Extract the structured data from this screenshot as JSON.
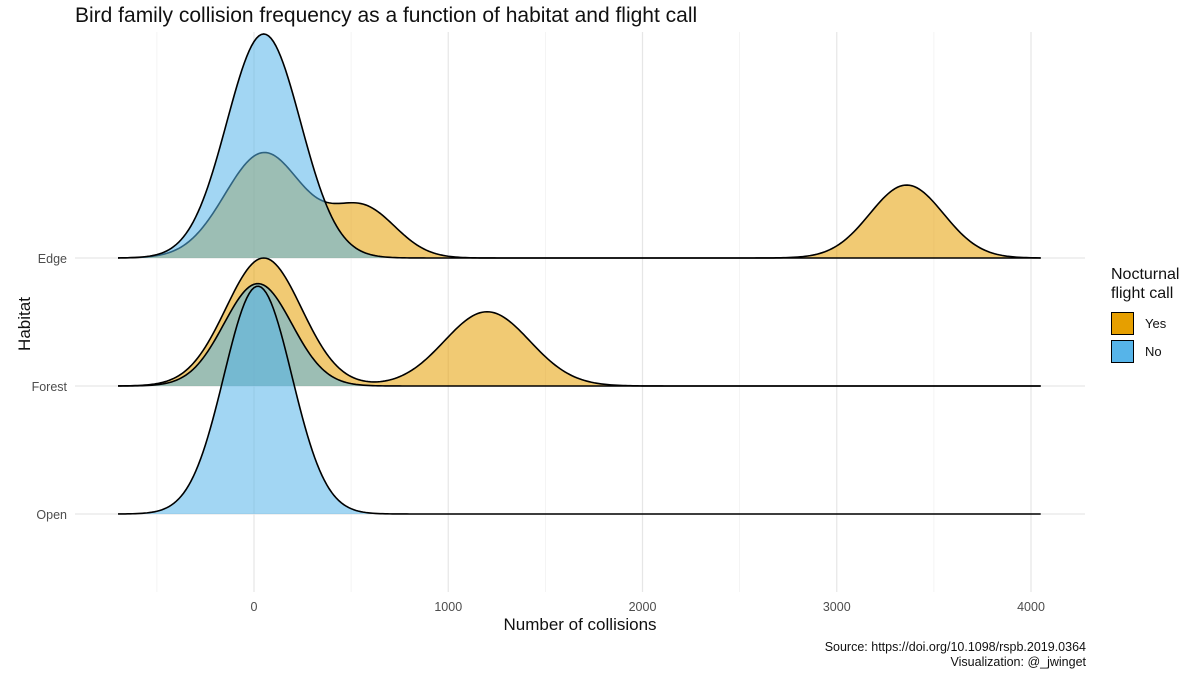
{
  "chart_data": {
    "type": "ridgeline",
    "title": "Bird family collision frequency as a function of habitat and flight call",
    "xlabel": "Number of collisions",
    "ylabel": "Habitat",
    "caption_lines": [
      "Source: https://doi.org/10.1098/rspb.2019.0364",
      "Visualization: @_jwinget"
    ],
    "x_ticks": [
      0,
      1000,
      2000,
      3000,
      4000
    ],
    "xlim": [
      -700,
      4050
    ],
    "categories": [
      "Edge",
      "Forest",
      "Open"
    ],
    "grid": true,
    "legend": {
      "title_lines": [
        "Nocturnal",
        "flight call"
      ],
      "placement": "right",
      "items": [
        {
          "label": "Yes",
          "color": "#E69F00"
        },
        {
          "label": "No",
          "color": "#56B4E9"
        }
      ]
    },
    "series": [
      {
        "name": "Yes",
        "color": "#E69F00",
        "ridges": [
          {
            "habitat": "Edge",
            "components": [
              {
                "mean": 50,
                "sd": 200,
                "weight": 0.82
              },
              {
                "mean": 560,
                "sd": 170,
                "weight": 0.39
              },
              {
                "mean": 3360,
                "sd": 190,
                "weight": 0.57
              }
            ]
          },
          {
            "habitat": "Forest",
            "components": [
              {
                "mean": 50,
                "sd": 195,
                "weight": 1.0
              },
              {
                "mean": 1200,
                "sd": 220,
                "weight": 0.58
              }
            ]
          }
        ]
      },
      {
        "name": "No",
        "color": "#56B4E9",
        "ridges": [
          {
            "habitat": "Edge",
            "components": [
              {
                "mean": 50,
                "sd": 190,
                "weight": 1.75
              }
            ]
          },
          {
            "habitat": "Forest",
            "components": [
              {
                "mean": 20,
                "sd": 175,
                "weight": 0.8
              }
            ]
          },
          {
            "habitat": "Open",
            "components": [
              {
                "mean": 20,
                "sd": 175,
                "weight": 1.78
              }
            ]
          }
        ]
      }
    ]
  }
}
